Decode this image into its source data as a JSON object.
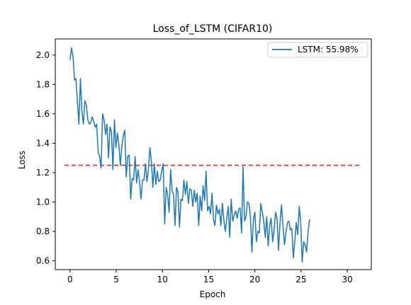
{
  "chart_data": {
    "type": "line",
    "title": "Loss_of_LSTM (CIFAR10)",
    "xlabel": "Epoch",
    "ylabel": "Loss",
    "xlim": [
      -1.6,
      32.6
    ],
    "ylim": [
      0.54,
      2.11
    ],
    "xticks": [
      0,
      5,
      10,
      15,
      20,
      25,
      30
    ],
    "yticks": [
      0.6,
      0.8,
      1.0,
      1.2,
      1.4,
      1.6,
      1.8,
      2.0
    ],
    "ytick_labels": [
      "0.6",
      "0.8",
      "1.0",
      "1.2",
      "1.4",
      "1.6",
      "1.8",
      "2.0"
    ],
    "grid": false,
    "legend_position": "top-right",
    "colors": {
      "series": "#1f77b4",
      "reference": "#d62728"
    },
    "series": [
      {
        "name": "LSTM: 55.98%",
        "x_start": 0,
        "x_step": 0.16,
        "values": [
          1.97,
          2.05,
          1.99,
          1.83,
          1.84,
          1.68,
          1.53,
          1.84,
          1.62,
          1.53,
          1.69,
          1.66,
          1.56,
          1.53,
          1.54,
          1.58,
          1.55,
          1.51,
          1.53,
          1.34,
          1.31,
          1.23,
          1.6,
          1.56,
          1.46,
          1.53,
          1.3,
          1.51,
          1.48,
          1.22,
          1.56,
          1.37,
          1.47,
          1.39,
          1.25,
          1.38,
          1.45,
          1.49,
          1.17,
          1.31,
          1.32,
          1.02,
          1.16,
          1.15,
          1.31,
          1.13,
          1.22,
          1.14,
          1.02,
          1.15,
          1.15,
          1.26,
          1.14,
          1.22,
          1.37,
          1.28,
          1.1,
          1.26,
          1.12,
          1.21,
          1.14,
          1.15,
          1.21,
          1.26,
          0.85,
          1.1,
          1.05,
          0.93,
          1.22,
          1.08,
          1.05,
          0.84,
          1.1,
          1.07,
          0.83,
          1.02,
          1.01,
          1.15,
          1.05,
          1.14,
          0.99,
          1.09,
          1.08,
          0.97,
          1.08,
          1.0,
          1.06,
          0.84,
          1.04,
          0.94,
          1.11,
          1.01,
          1.21,
          0.94,
          0.97,
          0.92,
          1.06,
          0.88,
          0.84,
          0.98,
          0.92,
          0.95,
          0.84,
          0.99,
          0.88,
          0.8,
          0.89,
          0.97,
          0.76,
          1.02,
          0.87,
          0.91,
          0.94,
          0.89,
          0.95,
          0.96,
          0.79,
          1.24,
          0.87,
          0.9,
          1.0,
          0.99,
          0.9,
          0.66,
          0.88,
          0.93,
          0.73,
          0.8,
          0.79,
          0.99,
          0.93,
          0.87,
          0.76,
          0.9,
          0.7,
          0.84,
          0.89,
          0.73,
          0.81,
          0.93,
          0.89,
          0.67,
          0.86,
          0.98,
          0.84,
          0.71,
          0.79,
          0.86,
          0.87,
          0.81,
          0.82,
          0.62,
          0.73,
          0.86,
          0.78,
          0.97,
          0.86,
          0.59,
          0.73,
          0.71,
          0.66,
          0.8,
          0.88
        ]
      }
    ],
    "reference_lines": [
      {
        "y": 1.25,
        "style": "dashed"
      }
    ]
  }
}
